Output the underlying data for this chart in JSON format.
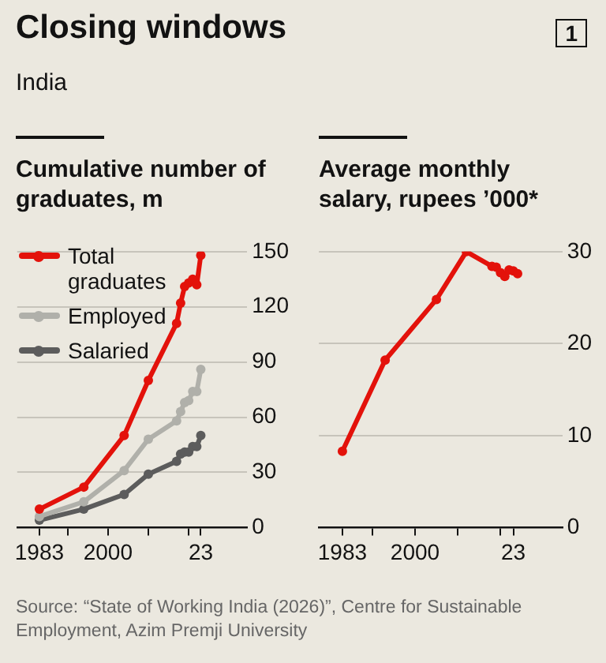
{
  "chart_data": [
    {
      "type": "line",
      "title": "Closing windows",
      "subtitle": "India",
      "ylabel": "Cumulative number of graduates, m",
      "annotations": [
        "1"
      ],
      "x": [
        1983,
        1994,
        2004,
        2010,
        2017,
        2018,
        2019,
        2020,
        2021,
        2022,
        2023
      ],
      "series": [
        {
          "name": "Total graduates",
          "color": "#e3120b",
          "values": [
            10,
            22,
            50,
            80,
            111,
            122,
            131,
            133,
            135,
            132,
            148
          ]
        },
        {
          "name": "Employed",
          "color": "#b0b0aa",
          "values": [
            6,
            14,
            31,
            48,
            58,
            63,
            68,
            69,
            74,
            74,
            86
          ]
        },
        {
          "name": "Salaried",
          "color": "#5c5c5c",
          "values": [
            4,
            10,
            18,
            29,
            36,
            40,
            41,
            41,
            44,
            44,
            50
          ]
        }
      ],
      "xlim": [
        1977.5,
        2034.5
      ],
      "xticks": [
        {
          "value": 1983,
          "label": "1983"
        },
        {
          "value": 1990,
          "label": null
        },
        {
          "value": 2000,
          "label": "2000"
        },
        {
          "value": 2010,
          "label": null
        },
        {
          "value": 2020,
          "label": null
        },
        {
          "value": 2023,
          "label": "23"
        }
      ],
      "ylim": [
        0,
        150
      ],
      "yticks": [
        0,
        30,
        60,
        90,
        120,
        150
      ],
      "grid": "y",
      "legend": "top left",
      "marker": "circle",
      "line_style": "solid"
    },
    {
      "type": "line",
      "ylabel": "Average monthly salary, rupees ’000*",
      "annotations": [
        "Source: “State of Working India (2026)”, Centre for Sustainable Employment, Azim Premji University"
      ],
      "x": [
        1983,
        1993,
        2005,
        2012,
        2018,
        2019,
        2020,
        2021,
        2022,
        2023,
        2024
      ],
      "series": [
        {
          "color": "#e3120b",
          "values": [
            8.3,
            18.2,
            24.8,
            30,
            28.4,
            28.3,
            27.7,
            27.3,
            28,
            27.9,
            27.6
          ]
        }
      ],
      "xlim": [
        1977.5,
        2034.5
      ],
      "xticks": [
        {
          "value": 1983,
          "label": "1983"
        },
        {
          "value": 1990,
          "label": null
        },
        {
          "value": 2000,
          "label": "2000"
        },
        {
          "value": 2010,
          "label": null
        },
        {
          "value": 2020,
          "label": null
        },
        {
          "value": 2023,
          "label": "23"
        }
      ],
      "ylim": [
        0,
        30
      ],
      "yticks": [
        0,
        10,
        20,
        30
      ],
      "grid": "y",
      "legend": false,
      "marker": "circle",
      "line_style": "solid"
    }
  ]
}
